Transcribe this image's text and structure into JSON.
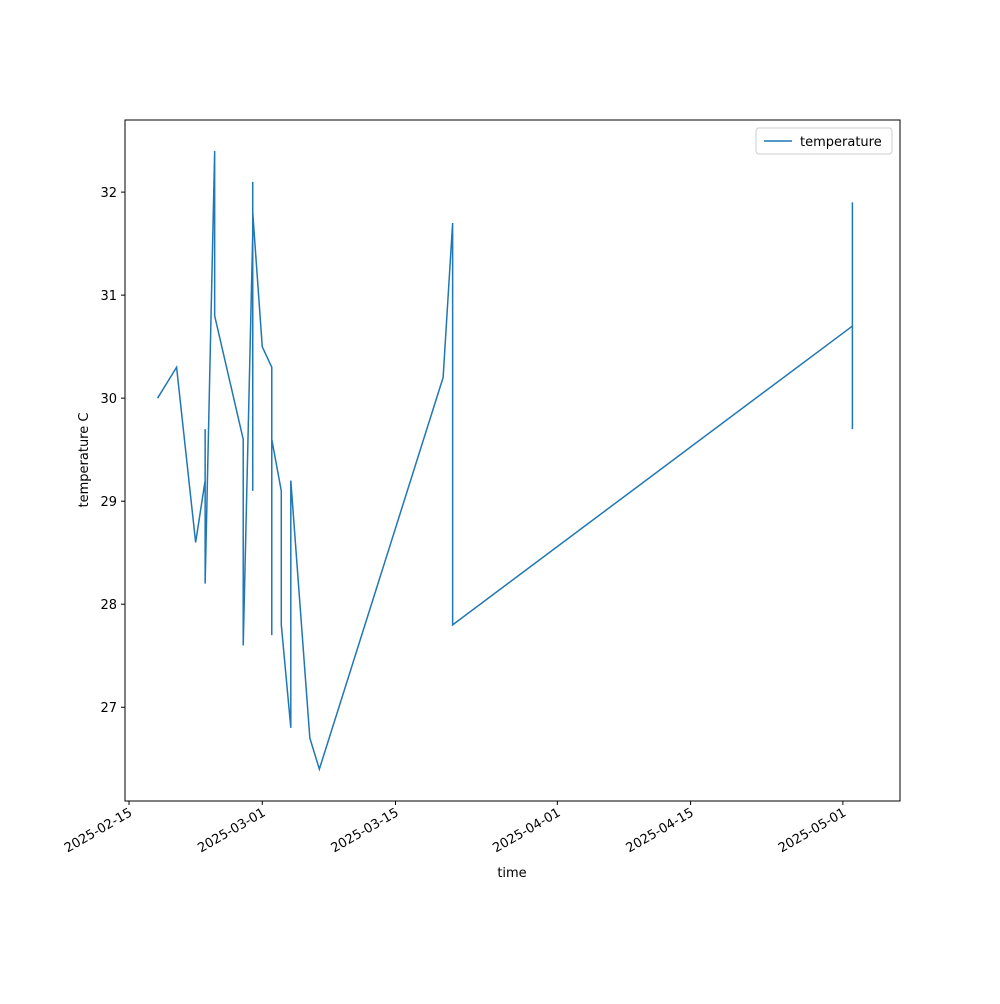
{
  "chart_data": {
    "type": "line",
    "xlabel": "time",
    "ylabel": "temperature C",
    "x": [
      "2025-02-18",
      "2025-02-20",
      "2025-02-22",
      "2025-02-23",
      "2025-02-23",
      "2025-02-23",
      "2025-02-24",
      "2025-02-24",
      "2025-02-27",
      "2025-02-27",
      "2025-02-27",
      "2025-02-28",
      "2025-02-28",
      "2025-02-28",
      "2025-02-28",
      "2025-02-28",
      "2025-03-01",
      "2025-03-02",
      "2025-03-02",
      "2025-03-02",
      "2025-03-02",
      "2025-03-02",
      "2025-03-02",
      "2025-03-03",
      "2025-03-03",
      "2025-03-04",
      "2025-03-04",
      "2025-03-04",
      "2025-03-06",
      "2025-03-07",
      "2025-03-20",
      "2025-03-21",
      "2025-03-21",
      "2025-05-02",
      "2025-05-02",
      "2025-05-02",
      "2025-05-02",
      "2025-05-02"
    ],
    "series": [
      {
        "name": "temperature",
        "color": "#1f77b4",
        "values": [
          30.0,
          30.3,
          28.6,
          29.2,
          29.7,
          28.2,
          32.4,
          30.8,
          29.6,
          28.8,
          27.6,
          31.6,
          31.5,
          32.1,
          29.1,
          31.8,
          30.5,
          30.3,
          29.3,
          29.6,
          28.4,
          27.7,
          29.6,
          29.1,
          27.8,
          26.8,
          27.5,
          29.2,
          26.7,
          26.4,
          30.2,
          31.7,
          27.8,
          30.7,
          31.9,
          30.9,
          29.7,
          30.0
        ]
      }
    ],
    "xlim": [
      "2025-02-15",
      "2025-05-07"
    ],
    "xticks": [
      "2025-02-15",
      "2025-03-01",
      "2025-03-15",
      "2025-04-01",
      "2025-04-15",
      "2025-05-01"
    ],
    "ylim": [
      26.09,
      32.7
    ],
    "yticks": [
      27,
      28,
      29,
      30,
      31,
      32
    ],
    "legend": "upper right"
  }
}
